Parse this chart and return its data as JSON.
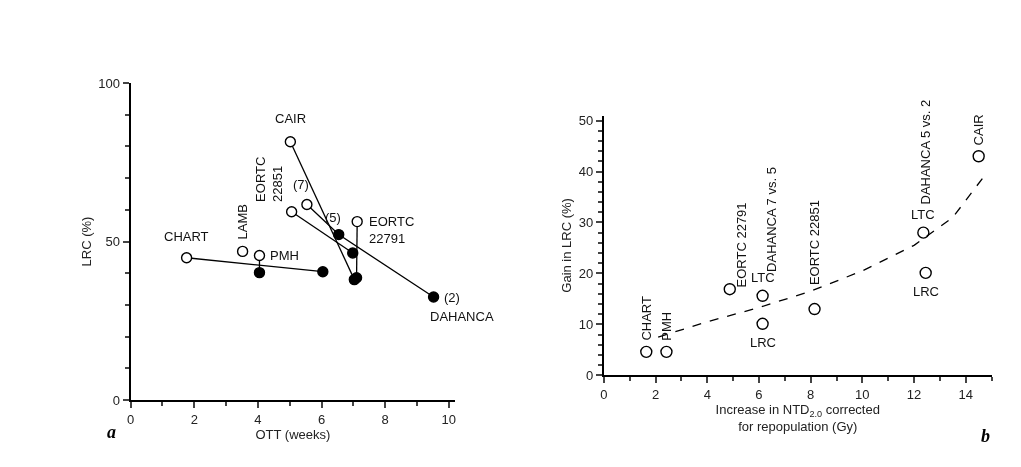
{
  "chart_data": [
    {
      "type": "line",
      "xlabel": "OTT (weeks)",
      "ylabel": "LRC (%)",
      "xlim": [
        0,
        10.2
      ],
      "xticks": [
        0,
        2,
        4,
        6,
        8,
        10
      ],
      "ylim": [
        0,
        100
      ],
      "yticks": [
        0,
        50,
        100
      ],
      "marker": "circle",
      "series": [
        {
          "x": [
            1.76,
            6.04
          ],
          "values": [
            44.9,
            40.5
          ],
          "color": "#000000",
          "colors": [
            "#ffffff",
            "#000000"
          ]
        },
        {
          "x": [
            4.05,
            4.05
          ],
          "values": [
            45.6,
            40.2
          ],
          "color": "#000000",
          "colors": [
            "#ffffff",
            "#000000"
          ]
        },
        {
          "x": [
            5.02,
            7.03
          ],
          "values": [
            81.5,
            38.0
          ],
          "color": "#000000",
          "colors": [
            "#ffffff",
            "#000000"
          ]
        },
        {
          "x": [
            5.06,
            6.98
          ],
          "values": [
            59.4,
            46.4
          ],
          "color": "#000000",
          "colors": [
            "#ffffff",
            "#000000"
          ]
        },
        {
          "x": [
            5.54,
            6.54,
            9.52
          ],
          "values": [
            61.7,
            52.2,
            32.5
          ],
          "color": "#000000",
          "colors": [
            "#ffffff",
            "#000000",
            "#000000"
          ]
        },
        {
          "x": [
            7.12,
            7.1
          ],
          "values": [
            56.3,
            38.6
          ],
          "color": "#000000",
          "colors": [
            "#ffffff",
            "#000000"
          ]
        },
        {
          "type": "scatter",
          "x": [
            3.52
          ],
          "values": [
            46.9
          ],
          "color": "#000000",
          "colors": [
            "#ffffff"
          ]
        }
      ],
      "annotations": [
        {
          "text": "CAIR",
          "x": 5.02,
          "y": 81.5
        },
        {
          "text": "CHART",
          "x": 1.76,
          "y": 44.9
        },
        {
          "text": "LAMB",
          "x": 3.52,
          "y": 46.9
        },
        {
          "text": "EORTC\n22851",
          "x": 5.06,
          "y": 59.4
        },
        {
          "text": "(7)",
          "x": 5.54,
          "y": 61.7
        },
        {
          "text": "(5)",
          "x": 6.54,
          "y": 52.2
        },
        {
          "text": "EORTC\n22791",
          "x": 7.12,
          "y": 56.3
        },
        {
          "text": "PMH",
          "x": 4.05,
          "y": 45.6
        },
        {
          "text": "(2)",
          "x": 9.52,
          "y": 32.5
        },
        {
          "text": "DAHANCA",
          "x": 9.52,
          "y": 32.5
        },
        "a"
      ]
    },
    {
      "type": "scatter",
      "xlabel": "Increase in NTD$_{2.0}$ corrected\nfor repopulation (Gy)",
      "ylabel": "Gain in LRC (%)",
      "xlim": [
        0,
        15
      ],
      "xticks": [
        0,
        2,
        4,
        6,
        8,
        10,
        12,
        14
      ],
      "ylim": [
        0,
        51
      ],
      "yticks": [
        0,
        10,
        20,
        30,
        40,
        50
      ],
      "marker": "circle",
      "series": [
        {
          "x": [
            1.64,
            2.42,
            4.87,
            6.14,
            6.14,
            8.15,
            12.36,
            12.45,
            14.5
          ],
          "values": [
            4.6,
            4.6,
            16.9,
            15.6,
            10.1,
            13.0,
            28.0,
            20.1,
            43.0
          ],
          "color": "#ffffff"
        },
        {
          "type": "line",
          "line_style": "dashed",
          "marker": "none",
          "x": [
            2.1,
            4,
            6,
            8,
            10,
            12,
            13.5,
            14.7
          ],
          "values": [
            7.5,
            10.5,
            13.3,
            16.5,
            20.5,
            25.5,
            31,
            39
          ],
          "color": "#000000"
        }
      ],
      "annotations": [
        {
          "text": "CHART",
          "x": 1.64,
          "y": 4.6
        },
        {
          "text": "PMH",
          "x": 2.42,
          "y": 4.6
        },
        {
          "text": "EORTC 22791",
          "x": 4.87,
          "y": 16.9
        },
        {
          "text": "LTC",
          "x": 6.14,
          "y": 15.6
        },
        {
          "text": "DAHANCA 7 vs. 5",
          "x": 6.14,
          "y": 15.6
        },
        {
          "text": "LRC",
          "x": 6.14,
          "y": 10.1
        },
        {
          "text": "EORTC 22851",
          "x": 8.15,
          "y": 13.0
        },
        {
          "text": "LTC",
          "x": 12.36,
          "y": 28.0
        },
        {
          "text": "DAHANCA 5 vs. 2",
          "x": 12.36,
          "y": 28.0
        },
        {
          "text": "LRC",
          "x": 12.45,
          "y": 20.1
        },
        {
          "text": "CAIR",
          "x": 14.5,
          "y": 43.0
        },
        "b"
      ]
    }
  ]
}
